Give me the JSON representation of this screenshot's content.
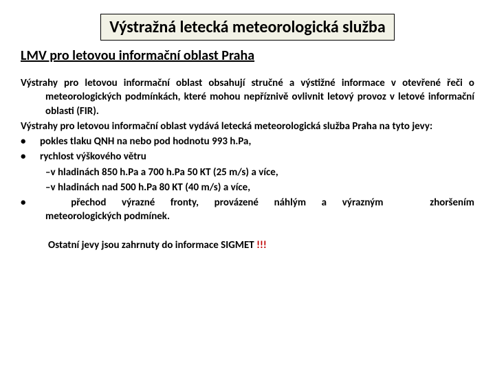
{
  "colors": {
    "title_bg": "#f2f2e6",
    "title_border": "#000000",
    "text": "#000000",
    "red": "#c00000",
    "page_bg": "#ffffff"
  },
  "typography": {
    "family": "Calibri, Arial, sans-serif",
    "title_size_pt": 18,
    "subtitle_size_pt": 15,
    "body_size_pt": 11,
    "weight": "bold"
  },
  "title": "Výstražná letecká meteorologická služba",
  "subtitle": "LMV pro letovou informační oblast Praha",
  "para1": "Výstrahy pro letovou informační oblast obsahují stručné a výstižné informace v otevřené řeči o meteorologických podmínkách, které mohou nepříznivě ovlivnit letový provoz v letové informační oblasti (FIR).",
  "para2": "Výstrahy pro letovou informační oblast vydává letecká meteorologická služba Praha na tyto jevy:",
  "bullets": {
    "b1": "pokles tlaku QNH na nebo pod hodnotu 993 h.Pa,",
    "b2": "rychlost výškového větru",
    "b2s1": "–v hladinách 850 h.Pa a 700 h.Pa 50 KT (25 m/s) a více,",
    "b2s2": "–v hladinách nad 500 h.Pa 80 KT (40 m/s) a více,",
    "b3_line1_left": "přechod výrazné fronty, provázené náhlým a výrazným",
    "b3_line1_right": "zhoršením",
    "b3_line2": "meteorologických  podmínek."
  },
  "footer": {
    "text": "Ostatní jevy jsou zahrnuty do informace SIGMET ",
    "excl": "!!!"
  }
}
